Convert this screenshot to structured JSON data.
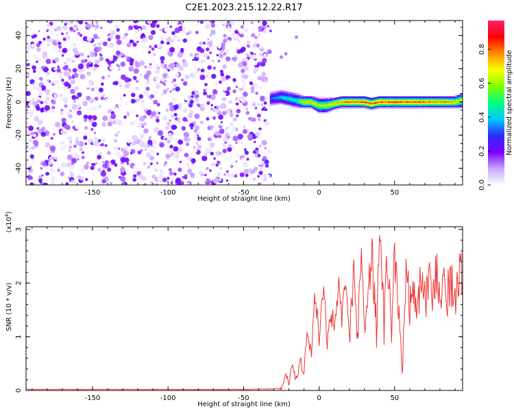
{
  "title": "C2E1.2023.215.12.22.R17",
  "chart_data": [
    {
      "type": "heatmap",
      "xlabel": "Height of straight line (km)",
      "ylabel": "Frequency (Hz)",
      "xlim": [
        -194,
        95
      ],
      "ylim": [
        -50,
        49
      ],
      "xticks": [
        -150,
        -100,
        -50,
        0,
        50
      ],
      "yticks": [
        -40,
        -20,
        0,
        20,
        40
      ],
      "colorbar": {
        "label": "Normalized spectral amplitude",
        "range": [
          0,
          0.97
        ],
        "ticks": [
          0.0,
          0.2,
          0.4,
          0.6,
          0.8
        ],
        "tick_labels": [
          "0.0",
          "0.2",
          "0.4",
          "0.6",
          "0.8"
        ],
        "colors": [
          "#ffffff",
          "#c9a6ff",
          "#7a00ff",
          "#2b2bff",
          "#00c8ff",
          "#00ff7f",
          "#7fff00",
          "#ffff00",
          "#ff8c00",
          "#ff0000",
          "#ff1e6e"
        ]
      },
      "noise_region_x": [
        -194,
        -32
      ],
      "noise_amplitude_range": [
        0.0,
        0.25
      ],
      "signal_band": {
        "x": [
          -32,
          -25,
          -20,
          -15,
          -10,
          -5,
          0,
          5,
          10,
          15,
          20,
          25,
          30,
          35,
          40,
          45,
          50,
          55,
          60,
          65,
          70,
          75,
          80,
          85,
          90,
          95
        ],
        "center_freq": [
          2,
          3,
          2,
          1,
          0,
          0,
          -2,
          -2,
          -1,
          0,
          0,
          0,
          0,
          -1,
          0,
          0,
          0,
          0,
          0,
          0,
          0,
          0,
          0,
          0,
          0,
          1
        ],
        "half_width": [
          3,
          3,
          3,
          3,
          2,
          2,
          3,
          3,
          2,
          2,
          2,
          2,
          2,
          2,
          2,
          2,
          2,
          2,
          2,
          2,
          2,
          2,
          2,
          2,
          2,
          3
        ],
        "peak_amplitude": [
          0.35,
          0.45,
          0.5,
          0.5,
          0.75,
          0.8,
          0.7,
          0.72,
          0.82,
          0.85,
          0.9,
          0.9,
          0.92,
          0.9,
          0.92,
          0.92,
          0.92,
          0.92,
          0.92,
          0.92,
          0.9,
          0.88,
          0.85,
          0.85,
          0.8,
          0.75
        ]
      },
      "isolated_points": [
        {
          "x": -15,
          "y": 39
        },
        {
          "x": -25,
          "y": 27
        },
        {
          "x": -22,
          "y": 29
        }
      ]
    },
    {
      "type": "line",
      "xlabel": "Height of straight line (km)",
      "ylabel": "SNR (10 * v/v)",
      "multiplier_label": "(x10",
      "multiplier_exp": "4",
      "multiplier_close": ")",
      "xlim": [
        -194,
        95
      ],
      "ylim": [
        0,
        3.05
      ],
      "xticks": [
        -150,
        -100,
        -50,
        0,
        50
      ],
      "yticks": [
        0,
        1,
        2,
        3
      ],
      "color": "#ee3333",
      "x": [
        -194,
        -150,
        -100,
        -50,
        -25,
        -22,
        -20,
        -18,
        -15,
        -12,
        -10,
        -8,
        -5,
        -3,
        0,
        3,
        5,
        8,
        10,
        13,
        15,
        18,
        20,
        23,
        25,
        28,
        30,
        32,
        35,
        38,
        40,
        43,
        45,
        48,
        50,
        53,
        55,
        58,
        60,
        63,
        65,
        68,
        70,
        73,
        75,
        78,
        80,
        83,
        85,
        88,
        90,
        93,
        95
      ],
      "y": [
        0.02,
        0.02,
        0.02,
        0.02,
        0.03,
        0.3,
        0.15,
        0.5,
        0.2,
        0.55,
        0.3,
        1.1,
        0.6,
        1.9,
        1.0,
        2.0,
        0.9,
        1.5,
        1.1,
        2.1,
        1.3,
        1.9,
        1.0,
        2.2,
        0.8,
        2.6,
        0.9,
        1.5,
        2.7,
        0.95,
        3.05,
        1.2,
        2.5,
        1.0,
        2.6,
        1.4,
        0.55,
        2.5,
        1.5,
        2.1,
        1.3,
        2.3,
        1.6,
        2.2,
        1.8,
        2.2,
        1.9,
        2.1,
        1.8,
        2.0,
        1.6,
        2.25,
        2.0
      ]
    }
  ]
}
